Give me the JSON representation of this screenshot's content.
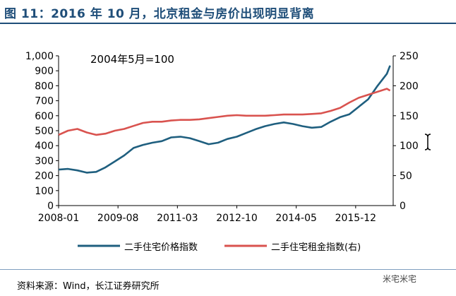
{
  "title": "图 11：2016 年 10 月，北京租金与房价出现明显背离",
  "source": "资料来源：Wind，长江证券研究所",
  "watermark": "米宅米宅",
  "chart_data": {
    "type": "line",
    "annotation": "2004年5月=100",
    "x_tick_labels": [
      "2008-01",
      "2009-08",
      "2011-03",
      "2012-10",
      "2014-05",
      "2015-12"
    ],
    "y_left": {
      "ylim": [
        0,
        1000
      ],
      "ticks": [
        "1,000",
        "900",
        "800",
        "700",
        "600",
        "500",
        "400",
        "300",
        "200",
        "100",
        "0"
      ]
    },
    "y_right": {
      "ylim": [
        0,
        250
      ],
      "ticks": [
        "250",
        "200",
        "150",
        "100",
        "50",
        "0"
      ]
    },
    "legend_position": "bottom",
    "series": [
      {
        "name": "二手住宅价格指数",
        "axis": "left",
        "color": "#1f5f7f",
        "x": [
          "2008-01",
          "2008-04",
          "2008-07",
          "2008-10",
          "2009-01",
          "2009-04",
          "2009-07",
          "2009-10",
          "2010-01",
          "2010-04",
          "2010-07",
          "2010-10",
          "2011-01",
          "2011-04",
          "2011-07",
          "2011-10",
          "2012-01",
          "2012-04",
          "2012-07",
          "2012-10",
          "2013-01",
          "2013-04",
          "2013-07",
          "2013-10",
          "2014-01",
          "2014-04",
          "2014-07",
          "2014-10",
          "2015-01",
          "2015-04",
          "2015-07",
          "2015-10",
          "2016-01",
          "2016-04",
          "2016-07",
          "2016-10",
          "2016-11"
        ],
        "values": [
          240,
          245,
          235,
          220,
          225,
          255,
          295,
          335,
          385,
          405,
          420,
          430,
          455,
          460,
          450,
          430,
          410,
          420,
          445,
          460,
          485,
          510,
          530,
          545,
          555,
          545,
          530,
          520,
          525,
          560,
          590,
          610,
          660,
          710,
          800,
          880,
          935
        ]
      },
      {
        "name": "二手住宅租金指数(右)",
        "axis": "right",
        "color": "#d9534f",
        "x": [
          "2008-01",
          "2008-04",
          "2008-07",
          "2008-10",
          "2009-01",
          "2009-04",
          "2009-07",
          "2009-10",
          "2010-01",
          "2010-04",
          "2010-07",
          "2010-10",
          "2011-01",
          "2011-04",
          "2011-07",
          "2011-10",
          "2012-01",
          "2012-04",
          "2012-07",
          "2012-10",
          "2013-01",
          "2013-04",
          "2013-07",
          "2013-10",
          "2014-01",
          "2014-04",
          "2014-07",
          "2014-10",
          "2015-01",
          "2015-04",
          "2015-07",
          "2015-10",
          "2016-01",
          "2016-04",
          "2016-07",
          "2016-10",
          "2016-11"
        ],
        "values": [
          118,
          125,
          128,
          122,
          118,
          120,
          125,
          128,
          133,
          138,
          140,
          140,
          142,
          143,
          143,
          144,
          146,
          148,
          150,
          151,
          150,
          150,
          150,
          151,
          152,
          152,
          152,
          153,
          154,
          158,
          163,
          172,
          180,
          185,
          190,
          195,
          192
        ]
      }
    ]
  }
}
